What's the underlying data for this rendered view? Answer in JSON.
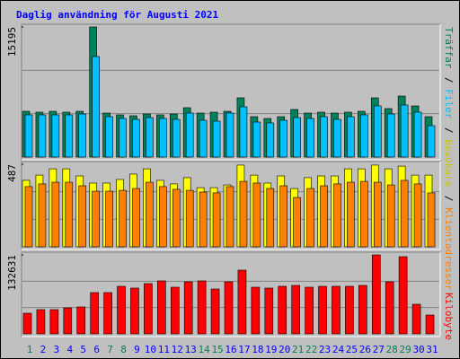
{
  "chart_data": [
    {
      "type": "bar",
      "title": "Daglig användning för Augusti 2021",
      "legend_separator": "/",
      "ylim": [
        0,
        15195
      ],
      "yticks": [
        15195
      ],
      "series": [
        {
          "name": "Träffar",
          "color": "#00805c",
          "values": [
            5344,
            5240,
            5344,
            5240,
            5344,
            15195,
            5135,
            4925,
            4820,
            5030,
            4925,
            5030,
            5763,
            5135,
            5240,
            5344,
            6916,
            4716,
            4506,
            4716,
            5554,
            5135,
            5240,
            5135,
            5240,
            5344,
            6916,
            5659,
            7126,
            5973,
            4716
          ]
        },
        {
          "name": "Filer",
          "color": "#00c0ff",
          "values": [
            4925,
            4925,
            4925,
            4925,
            5030,
            11736,
            4716,
            4506,
            4401,
            4611,
            4506,
            4401,
            5135,
            4296,
            4192,
            5135,
            5868,
            4087,
            3982,
            4296,
            4611,
            4506,
            4716,
            4401,
            4716,
            4925,
            5973,
            5030,
            6078,
            5240,
            3668
          ]
        }
      ]
    },
    {
      "type": "bar",
      "ylim": [
        0,
        487
      ],
      "yticks": [
        487
      ],
      "series": [
        {
          "name": "Besökare",
          "color": "#ffff00",
          "values": [
            392,
            423,
            460,
            460,
            418,
            376,
            376,
            397,
            429,
            460,
            392,
            371,
            408,
            349,
            349,
            365,
            482,
            423,
            376,
            418,
            344,
            408,
            418,
            418,
            460,
            460,
            482,
            460,
            476,
            423,
            423
          ]
        },
        {
          "name": "Klientadresser",
          "color": "#ff8000",
          "values": [
            355,
            371,
            381,
            381,
            360,
            328,
            328,
            333,
            344,
            381,
            355,
            339,
            333,
            323,
            318,
            355,
            386,
            376,
            344,
            360,
            291,
            344,
            360,
            371,
            381,
            386,
            381,
            365,
            392,
            371,
            318
          ]
        }
      ]
    },
    {
      "type": "bar",
      "ylim": [
        0,
        132631
      ],
      "yticks": [
        132631
      ],
      "categories": [
        "1",
        "2",
        "3",
        "4",
        "5",
        "6",
        "7",
        "8",
        "9",
        "10",
        "11",
        "12",
        "13",
        "14",
        "15",
        "16",
        "17",
        "18",
        "19",
        "20",
        "21",
        "22",
        "23",
        "24",
        "25",
        "26",
        "27",
        "28",
        "29",
        "30",
        "31"
      ],
      "category_colors": [
        "#00805c",
        "#0000ff",
        "#0000ff",
        "#0000ff",
        "#0000ff",
        "#0000ff",
        "#00805c",
        "#00805c",
        "#0000ff",
        "#0000ff",
        "#0000ff",
        "#0000ff",
        "#0000ff",
        "#00805c",
        "#00805c",
        "#0000ff",
        "#0000ff",
        "#0000ff",
        "#0000ff",
        "#0000ff",
        "#00805c",
        "#00805c",
        "#0000ff",
        "#0000ff",
        "#0000ff",
        "#0000ff",
        "#0000ff",
        "#00805c",
        "#00805c",
        "#0000ff",
        "#0000ff"
      ],
      "series": [
        {
          "name": "Kilobyte",
          "color": "#ff0000",
          "values": [
            34666,
            40697,
            40697,
            43708,
            45211,
            69331,
            69331,
            79878,
            76864,
            84399,
            88921,
            78371,
            87414,
            88921,
            75357,
            87414,
            107006,
            78371,
            76864,
            79878,
            81385,
            78371,
            79878,
            79878,
            79878,
            81385,
            132631,
            87414,
            129611,
            49736,
            31649
          ]
        }
      ]
    }
  ]
}
